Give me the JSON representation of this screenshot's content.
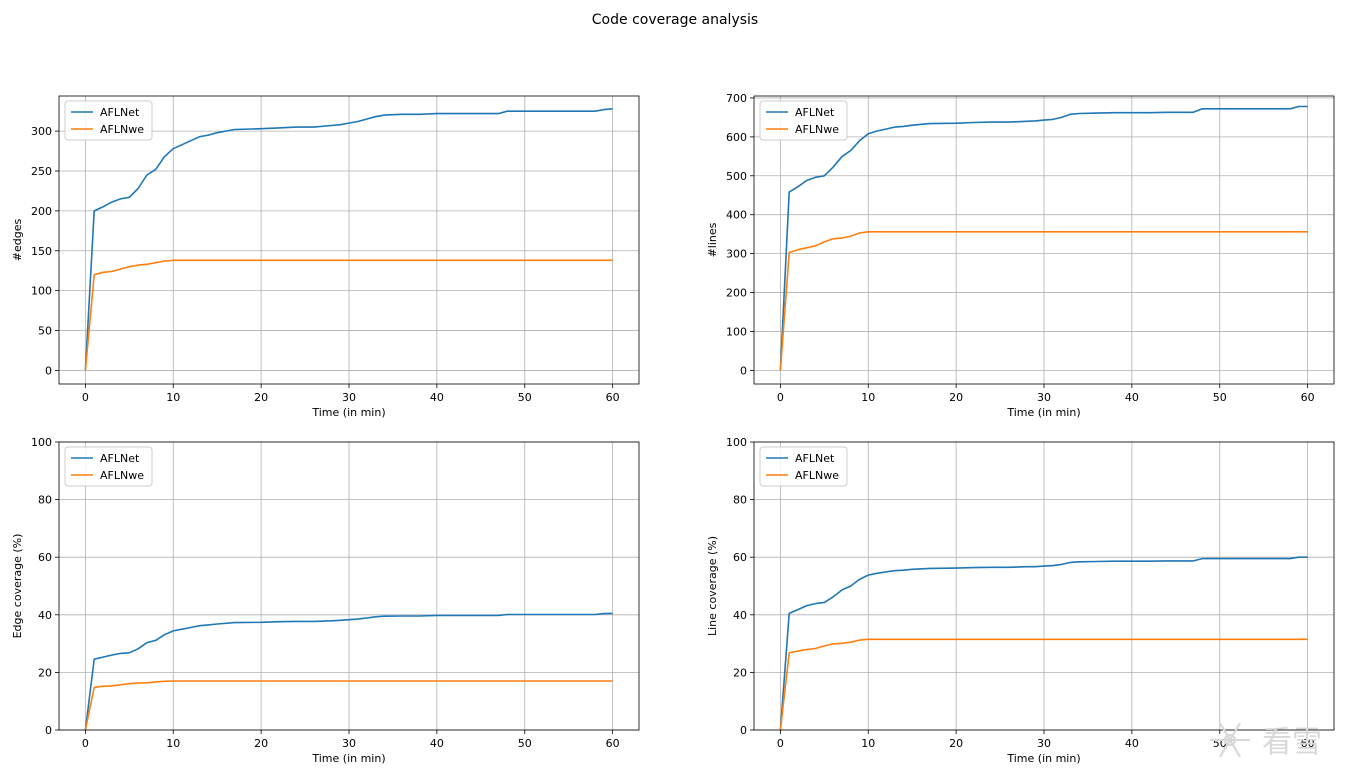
{
  "figure": {
    "suptitle": "Code coverage analysis",
    "watermark": "看雪",
    "colors": {
      "AFLNet": "#1f77b4",
      "AFLNwe": "#ff7f0e"
    }
  },
  "chart_data": [
    {
      "type": "line",
      "title": "",
      "xlabel": "Time (in min)",
      "ylabel": "#edges",
      "xlim": [
        -3,
        63
      ],
      "ylim": [
        -17,
        344
      ],
      "xticks": [
        0,
        10,
        20,
        30,
        40,
        50,
        60
      ],
      "yticks": [
        0,
        50,
        100,
        150,
        200,
        250,
        300
      ],
      "grid": true,
      "legend": "top-left",
      "series": [
        {
          "name": "AFLNet",
          "color": "#1f77b4",
          "x": [
            0,
            1,
            2,
            3,
            4,
            5,
            6,
            7,
            8,
            9,
            10,
            11,
            12,
            13,
            14,
            15,
            17,
            20,
            22,
            24,
            26,
            28,
            29,
            30,
            31,
            32,
            33,
            34,
            36,
            38,
            40,
            42,
            44,
            47,
            48,
            50,
            55,
            58,
            59,
            60
          ],
          "y": [
            0,
            200,
            205,
            211,
            215,
            217,
            228,
            245,
            252,
            268,
            278,
            283,
            288,
            293,
            295,
            298,
            302,
            303,
            304,
            305,
            305,
            307,
            308,
            310,
            312,
            315,
            318,
            320,
            321,
            321,
            322,
            322,
            322,
            322,
            325,
            325,
            325,
            325,
            327,
            328
          ]
        },
        {
          "name": "AFLNwe",
          "color": "#ff7f0e",
          "x": [
            0,
            1,
            2,
            3,
            4,
            5,
            6,
            7,
            8,
            9,
            10,
            60
          ],
          "y": [
            0,
            120,
            123,
            124,
            127,
            130,
            132,
            133,
            135,
            137,
            138,
            138
          ]
        }
      ]
    },
    {
      "type": "line",
      "title": "",
      "xlabel": "Time (in min)",
      "ylabel": "#lines",
      "xlim": [
        -3,
        63
      ],
      "ylim": [
        -35,
        705
      ],
      "xticks": [
        0,
        10,
        20,
        30,
        40,
        50,
        60
      ],
      "yticks": [
        0,
        100,
        200,
        300,
        400,
        500,
        600,
        700
      ],
      "grid": true,
      "legend": "top-left",
      "series": [
        {
          "name": "AFLNet",
          "color": "#1f77b4",
          "x": [
            0,
            1,
            2,
            3,
            4,
            5,
            6,
            7,
            8,
            9,
            10,
            11,
            12,
            13,
            14,
            15,
            17,
            20,
            22,
            24,
            26,
            28,
            29,
            30,
            31,
            32,
            33,
            34,
            36,
            38,
            40,
            42,
            44,
            47,
            48,
            50,
            55,
            58,
            59,
            60
          ],
          "y": [
            0,
            458,
            472,
            488,
            496,
            500,
            522,
            549,
            565,
            590,
            608,
            615,
            620,
            625,
            627,
            630,
            634,
            635,
            637,
            638,
            638,
            640,
            641,
            643,
            645,
            650,
            658,
            660,
            661,
            662,
            662,
            662,
            663,
            663,
            672,
            672,
            672,
            672,
            678,
            678
          ]
        },
        {
          "name": "AFLNwe",
          "color": "#ff7f0e",
          "x": [
            0,
            1,
            2,
            3,
            4,
            5,
            6,
            7,
            8,
            9,
            10,
            60
          ],
          "y": [
            0,
            303,
            310,
            315,
            320,
            330,
            338,
            340,
            345,
            353,
            356,
            356
          ]
        }
      ]
    },
    {
      "type": "line",
      "title": "",
      "xlabel": "Time (in min)",
      "ylabel": "Edge coverage (%)",
      "xlim": [
        -3,
        63
      ],
      "ylim": [
        0,
        100
      ],
      "xticks": [
        0,
        10,
        20,
        30,
        40,
        50,
        60
      ],
      "yticks": [
        0,
        20,
        40,
        60,
        80,
        100
      ],
      "grid": true,
      "legend": "top-left",
      "series": [
        {
          "name": "AFLNet",
          "color": "#1f77b4",
          "x": [
            0,
            1,
            2,
            3,
            4,
            5,
            6,
            7,
            8,
            9,
            10,
            11,
            12,
            13,
            14,
            15,
            17,
            20,
            22,
            24,
            26,
            28,
            29,
            30,
            31,
            32,
            33,
            34,
            36,
            38,
            40,
            42,
            44,
            47,
            48,
            50,
            55,
            58,
            59,
            60
          ],
          "y": [
            0,
            24.6,
            25.3,
            26.0,
            26.6,
            26.8,
            28.2,
            30.3,
            31.1,
            33.1,
            34.4,
            35.0,
            35.6,
            36.2,
            36.5,
            36.8,
            37.3,
            37.4,
            37.6,
            37.7,
            37.7,
            37.9,
            38.1,
            38.3,
            38.5,
            38.9,
            39.3,
            39.5,
            39.6,
            39.6,
            39.8,
            39.8,
            39.8,
            39.8,
            40.1,
            40.1,
            40.1,
            40.1,
            40.4,
            40.5
          ]
        },
        {
          "name": "AFLNwe",
          "color": "#ff7f0e",
          "x": [
            0,
            1,
            2,
            3,
            4,
            5,
            6,
            7,
            8,
            9,
            10,
            60
          ],
          "y": [
            0,
            14.8,
            15.2,
            15.3,
            15.7,
            16.1,
            16.3,
            16.4,
            16.7,
            16.9,
            17.0,
            17.0
          ]
        }
      ]
    },
    {
      "type": "line",
      "title": "",
      "xlabel": "Time (in min)",
      "ylabel": "Line coverage (%)",
      "xlim": [
        -3,
        63
      ],
      "ylim": [
        0,
        100
      ],
      "xticks": [
        0,
        10,
        20,
        30,
        40,
        50,
        60
      ],
      "yticks": [
        0,
        20,
        40,
        60,
        80,
        100
      ],
      "grid": true,
      "legend": "top-left",
      "series": [
        {
          "name": "AFLNet",
          "color": "#1f77b4",
          "x": [
            0,
            1,
            2,
            3,
            4,
            5,
            6,
            7,
            8,
            9,
            10,
            11,
            12,
            13,
            14,
            15,
            17,
            20,
            22,
            24,
            26,
            28,
            29,
            30,
            31,
            32,
            33,
            34,
            36,
            38,
            40,
            42,
            44,
            47,
            48,
            50,
            55,
            58,
            59,
            60
          ],
          "y": [
            0,
            40.5,
            41.8,
            43.2,
            43.9,
            44.3,
            46.2,
            48.6,
            50.0,
            52.3,
            53.8,
            54.4,
            54.9,
            55.3,
            55.5,
            55.8,
            56.1,
            56.2,
            56.4,
            56.5,
            56.5,
            56.7,
            56.7,
            56.9,
            57.1,
            57.5,
            58.2,
            58.4,
            58.5,
            58.6,
            58.6,
            58.6,
            58.7,
            58.7,
            59.5,
            59.5,
            59.5,
            59.5,
            60.0,
            60.0
          ]
        },
        {
          "name": "AFLNwe",
          "color": "#ff7f0e",
          "x": [
            0,
            1,
            2,
            3,
            4,
            5,
            6,
            7,
            8,
            9,
            10,
            60
          ],
          "y": [
            0,
            26.8,
            27.4,
            27.9,
            28.3,
            29.2,
            29.9,
            30.1,
            30.5,
            31.2,
            31.5,
            31.5
          ]
        }
      ]
    }
  ]
}
